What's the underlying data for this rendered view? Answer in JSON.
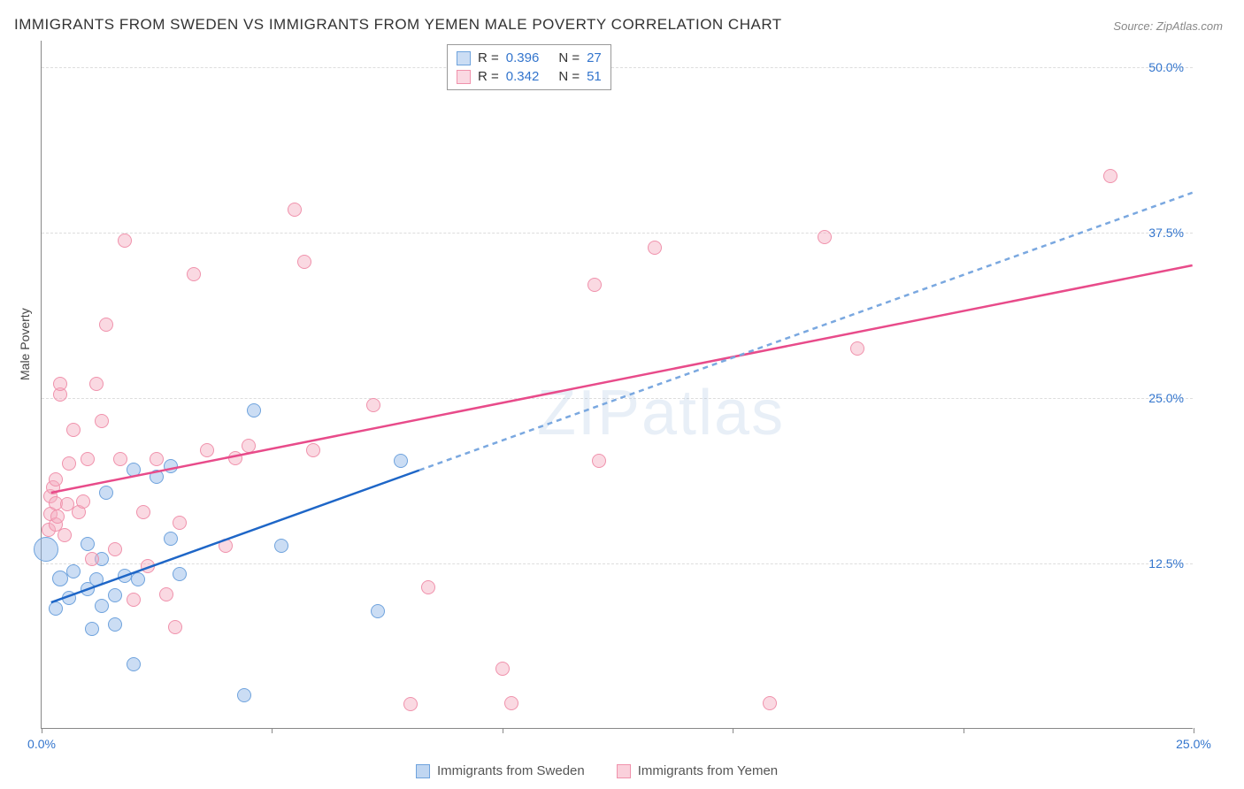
{
  "title": "IMMIGRANTS FROM SWEDEN VS IMMIGRANTS FROM YEMEN MALE POVERTY CORRELATION CHART",
  "source_label": "Source:",
  "source_name": "ZipAtlas.com",
  "ylabel": "Male Poverty",
  "watermark": "ZIPatlas",
  "chart": {
    "type": "scatter-correlation",
    "background_color": "#ffffff",
    "grid_color": "#dddddd",
    "axis_color": "#888888",
    "xlim": [
      0,
      25
    ],
    "ylim": [
      0,
      52
    ],
    "xticks": [
      0,
      5,
      10,
      15,
      20,
      25
    ],
    "xtick_labels": [
      "0.0%",
      "",
      "",
      "",
      "",
      "25.0%"
    ],
    "xtick_label_color": "#3375cd",
    "yticks": [
      12.5,
      25.0,
      37.5,
      50.0
    ],
    "ytick_labels": [
      "12.5%",
      "25.0%",
      "37.5%",
      "50.0%"
    ],
    "ytick_label_color": "#3375cd",
    "title_fontsize": 17,
    "label_fontsize": 14
  },
  "series": [
    {
      "name": "Immigrants from Sweden",
      "fill": "rgba(140, 180, 230, 0.45)",
      "stroke": "#6fa3dd",
      "line_color": "#1e66c7",
      "dash_color": "#7aa8e0",
      "R_label": "R =",
      "R": "0.396",
      "N_label": "N =",
      "N": "27",
      "trend": {
        "x1": 0.2,
        "y1": 9.5,
        "x2": 8.2,
        "y2": 19.5
      },
      "trend_ext": {
        "x1": 8.2,
        "y1": 19.5,
        "x2": 25.0,
        "y2": 40.5
      },
      "points": [
        {
          "x": 0.1,
          "y": 13.5,
          "r": 14
        },
        {
          "x": 0.4,
          "y": 11.3,
          "r": 9
        },
        {
          "x": 0.7,
          "y": 11.8,
          "r": 8
        },
        {
          "x": 0.6,
          "y": 9.8,
          "r": 8
        },
        {
          "x": 1.0,
          "y": 10.5,
          "r": 8
        },
        {
          "x": 1.2,
          "y": 11.2,
          "r": 8
        },
        {
          "x": 1.3,
          "y": 9.2,
          "r": 8
        },
        {
          "x": 1.3,
          "y": 12.8,
          "r": 8
        },
        {
          "x": 1.6,
          "y": 7.8,
          "r": 8
        },
        {
          "x": 1.6,
          "y": 10.0,
          "r": 8
        },
        {
          "x": 1.1,
          "y": 7.5,
          "r": 8
        },
        {
          "x": 1.8,
          "y": 11.5,
          "r": 8
        },
        {
          "x": 2.0,
          "y": 4.8,
          "r": 8
        },
        {
          "x": 2.0,
          "y": 19.5,
          "r": 8
        },
        {
          "x": 2.1,
          "y": 11.2,
          "r": 8
        },
        {
          "x": 1.4,
          "y": 17.8,
          "r": 8
        },
        {
          "x": 2.5,
          "y": 19.0,
          "r": 8
        },
        {
          "x": 2.8,
          "y": 14.3,
          "r": 8
        },
        {
          "x": 2.8,
          "y": 19.8,
          "r": 8
        },
        {
          "x": 3.0,
          "y": 11.6,
          "r": 8
        },
        {
          "x": 4.4,
          "y": 2.5,
          "r": 8
        },
        {
          "x": 4.6,
          "y": 24.0,
          "r": 8
        },
        {
          "x": 5.2,
          "y": 13.8,
          "r": 8
        },
        {
          "x": 7.3,
          "y": 8.8,
          "r": 8
        },
        {
          "x": 7.8,
          "y": 20.2,
          "r": 8
        },
        {
          "x": 1.0,
          "y": 13.9,
          "r": 8
        },
        {
          "x": 0.3,
          "y": 9.0,
          "r": 8
        }
      ]
    },
    {
      "name": "Immigrants from Yemen",
      "fill": "rgba(245, 170, 190, 0.45)",
      "stroke": "#f092ac",
      "line_color": "#e84b8a",
      "R_label": "R =",
      "R": "0.342",
      "N_label": "N =",
      "N": "51",
      "trend": {
        "x1": 0.2,
        "y1": 17.8,
        "x2": 25.0,
        "y2": 35.0
      },
      "points": [
        {
          "x": 0.15,
          "y": 15.0,
          "r": 8
        },
        {
          "x": 0.2,
          "y": 16.2,
          "r": 8
        },
        {
          "x": 0.2,
          "y": 17.5,
          "r": 8
        },
        {
          "x": 0.25,
          "y": 18.2,
          "r": 8
        },
        {
          "x": 0.3,
          "y": 15.4,
          "r": 8
        },
        {
          "x": 0.3,
          "y": 17.0,
          "r": 8
        },
        {
          "x": 0.35,
          "y": 16.0,
          "r": 8
        },
        {
          "x": 0.3,
          "y": 18.8,
          "r": 8
        },
        {
          "x": 0.4,
          "y": 25.2,
          "r": 8
        },
        {
          "x": 0.4,
          "y": 26.0,
          "r": 8
        },
        {
          "x": 0.6,
          "y": 20.0,
          "r": 8
        },
        {
          "x": 0.7,
          "y": 22.5,
          "r": 8
        },
        {
          "x": 0.8,
          "y": 16.3,
          "r": 8
        },
        {
          "x": 0.9,
          "y": 17.1,
          "r": 8
        },
        {
          "x": 1.0,
          "y": 20.3,
          "r": 8
        },
        {
          "x": 1.1,
          "y": 12.8,
          "r": 8
        },
        {
          "x": 1.2,
          "y": 26.0,
          "r": 8
        },
        {
          "x": 1.3,
          "y": 23.2,
          "r": 8
        },
        {
          "x": 1.4,
          "y": 30.5,
          "r": 8
        },
        {
          "x": 1.6,
          "y": 13.5,
          "r": 8
        },
        {
          "x": 1.7,
          "y": 20.3,
          "r": 8
        },
        {
          "x": 1.8,
          "y": 36.8,
          "r": 8
        },
        {
          "x": 2.0,
          "y": 9.7,
          "r": 8
        },
        {
          "x": 2.2,
          "y": 16.3,
          "r": 8
        },
        {
          "x": 2.3,
          "y": 12.2,
          "r": 8
        },
        {
          "x": 2.5,
          "y": 20.3,
          "r": 8
        },
        {
          "x": 2.7,
          "y": 10.1,
          "r": 8
        },
        {
          "x": 2.9,
          "y": 7.6,
          "r": 8
        },
        {
          "x": 3.0,
          "y": 15.5,
          "r": 8
        },
        {
          "x": 3.3,
          "y": 34.3,
          "r": 8
        },
        {
          "x": 3.6,
          "y": 21.0,
          "r": 8
        },
        {
          "x": 4.0,
          "y": 13.8,
          "r": 8
        },
        {
          "x": 4.2,
          "y": 20.4,
          "r": 8
        },
        {
          "x": 4.5,
          "y": 21.3,
          "r": 8
        },
        {
          "x": 5.5,
          "y": 39.2,
          "r": 8
        },
        {
          "x": 5.7,
          "y": 35.2,
          "r": 8
        },
        {
          "x": 5.9,
          "y": 21.0,
          "r": 8
        },
        {
          "x": 7.2,
          "y": 24.4,
          "r": 8
        },
        {
          "x": 8.0,
          "y": 1.8,
          "r": 8
        },
        {
          "x": 8.4,
          "y": 10.6,
          "r": 8
        },
        {
          "x": 10.2,
          "y": 1.9,
          "r": 8
        },
        {
          "x": 10.0,
          "y": 4.5,
          "r": 8
        },
        {
          "x": 12.0,
          "y": 33.5,
          "r": 8
        },
        {
          "x": 12.1,
          "y": 20.2,
          "r": 8
        },
        {
          "x": 13.3,
          "y": 36.3,
          "r": 8
        },
        {
          "x": 15.8,
          "y": 1.9,
          "r": 8
        },
        {
          "x": 17.0,
          "y": 37.1,
          "r": 8
        },
        {
          "x": 17.7,
          "y": 28.7,
          "r": 8
        },
        {
          "x": 23.2,
          "y": 41.7,
          "r": 8
        },
        {
          "x": 0.5,
          "y": 14.6,
          "r": 8
        },
        {
          "x": 0.55,
          "y": 16.9,
          "r": 8
        }
      ]
    }
  ],
  "legend": {
    "items": [
      {
        "label": "Immigrants from Sweden",
        "fill": "rgba(140,180,230,0.55)",
        "stroke": "#6fa3dd"
      },
      {
        "label": "Immigrants from Yemen",
        "fill": "rgba(245,170,190,0.55)",
        "stroke": "#f092ac"
      }
    ]
  }
}
